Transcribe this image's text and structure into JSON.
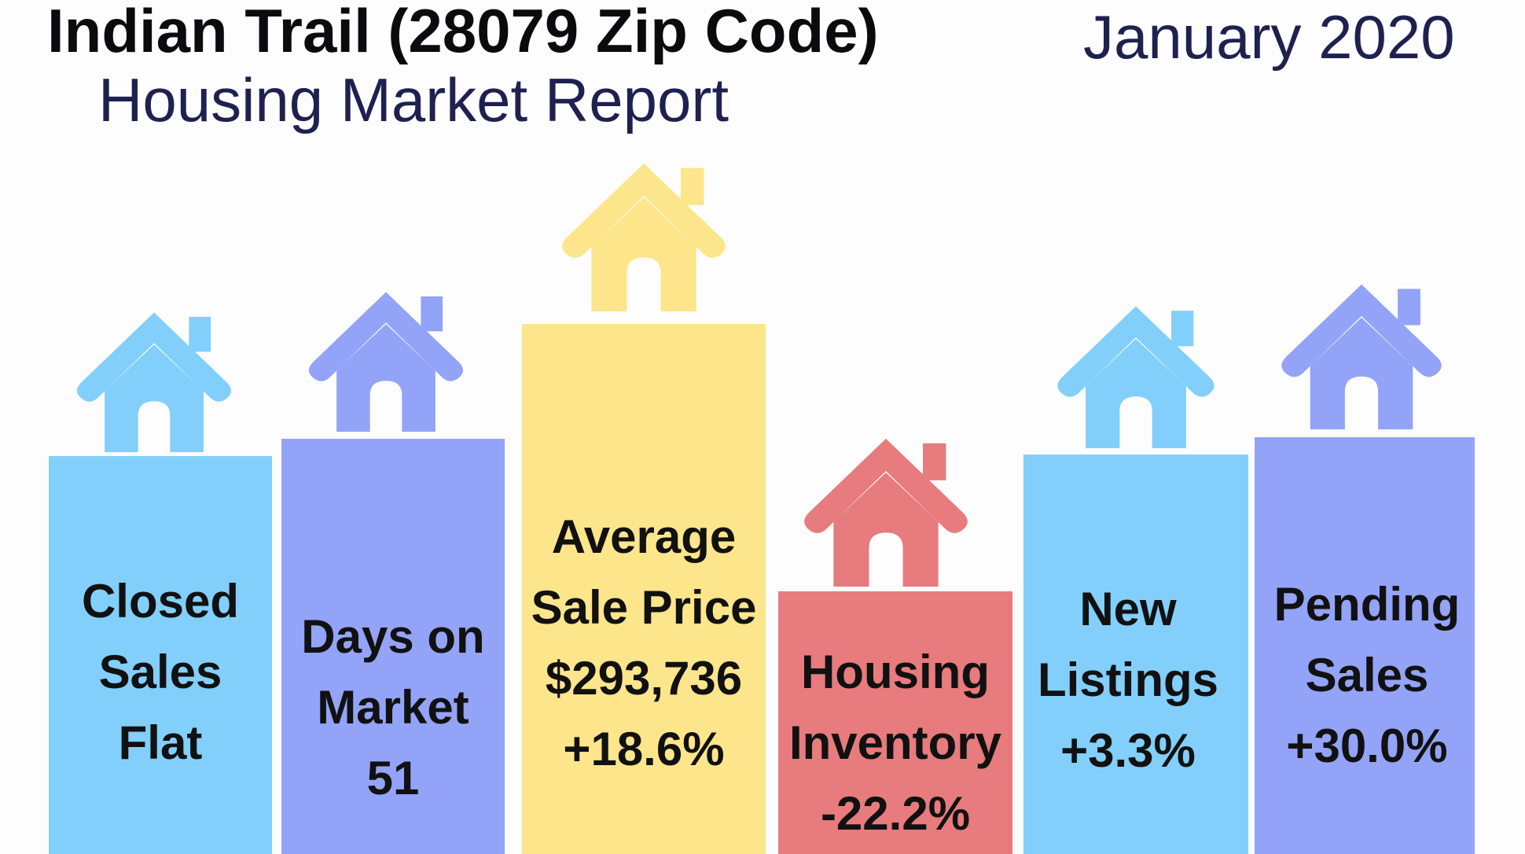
{
  "header": {
    "title": "Indian Trail (28079 Zip Code)",
    "subtitle": "Housing Market Report",
    "date": "January 2020"
  },
  "colors": {
    "blue": "#82cffc",
    "purple": "#93a3f7",
    "yellow": "#fde58c",
    "red": "#e77b7d"
  },
  "stats": [
    {
      "lines": [
        "Closed",
        "Sales",
        "Flat"
      ],
      "color": "blue",
      "icon": "house-icon"
    },
    {
      "lines": [
        "Days on",
        "Market",
        "51"
      ],
      "color": "purple",
      "icon": "house-icon"
    },
    {
      "lines": [
        "Average",
        "Sale Price",
        "$293,736",
        "+18.6%"
      ],
      "color": "yellow",
      "icon": "house-icon"
    },
    {
      "lines": [
        "Housing",
        "Inventory",
        "-22.2%"
      ],
      "color": "red",
      "icon": "house-icon"
    },
    {
      "lines": [
        "New",
        "Listings",
        "+3.3%"
      ],
      "color": "blue",
      "icon": "house-icon"
    },
    {
      "lines": [
        "Pending",
        "Sales",
        "+30.0%"
      ],
      "color": "purple",
      "icon": "house-icon"
    }
  ]
}
